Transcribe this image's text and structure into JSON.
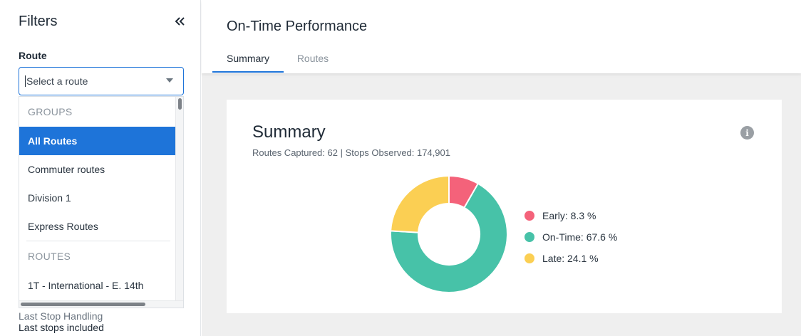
{
  "sidebar": {
    "title": "Filters",
    "route_label": "Route",
    "route_select": {
      "placeholder": "Select a route"
    },
    "dropdown": {
      "groups_header": "GROUPS",
      "group_items": [
        "All Routes",
        "Commuter routes",
        "Division 1",
        "Express Routes"
      ],
      "selected_index": 0,
      "routes_header": "ROUTES",
      "route_items": [
        "1T - International - E. 14th"
      ]
    },
    "last_stop": {
      "label": "Last Stop Handling",
      "value": "Last stops included"
    }
  },
  "header": {
    "title": "On-Time Performance",
    "tabs": [
      {
        "label": "Summary",
        "active": true
      },
      {
        "label": "Routes",
        "active": false
      }
    ]
  },
  "card": {
    "title": "Summary",
    "subtitle": "Routes Captured: 62 | Stops Observed: 174,901",
    "info_icon": "info-icon"
  },
  "chart_data": {
    "type": "pie",
    "style": "donut",
    "categories": [
      "Early",
      "On-Time",
      "Late"
    ],
    "values": [
      8.3,
      67.6,
      24.1
    ],
    "labels": [
      "Early: 8.3 %",
      "On-Time: 67.6 %",
      "Late: 24.1 %"
    ],
    "colors": [
      "#f4627a",
      "#47c2a8",
      "#fbcf53"
    ],
    "legend_position": "right"
  },
  "colors": {
    "accent": "#1e74d9"
  }
}
